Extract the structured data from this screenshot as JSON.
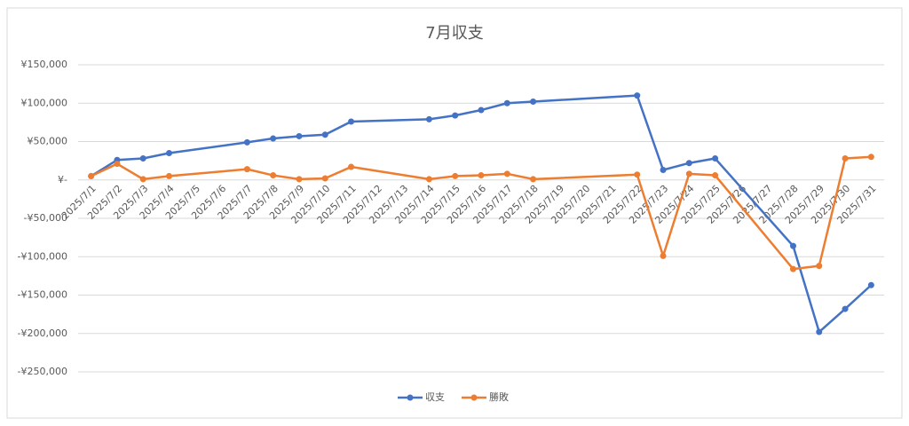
{
  "chart_data": {
    "type": "line",
    "title": "7月収支",
    "xticks": [
      "2025/7/1",
      "2025/7/2",
      "2025/7/3",
      "2025/7/4",
      "2025/7/5",
      "2025/7/6",
      "2025/7/7",
      "2025/7/8",
      "2025/7/9",
      "2025/7/10",
      "2025/7/11",
      "2025/7/12",
      "2025/7/13",
      "2025/7/14",
      "2025/7/15",
      "2025/7/16",
      "2025/7/17",
      "2025/7/18",
      "2025/7/19",
      "2025/7/20",
      "2025/7/21",
      "2025/7/22",
      "2025/7/23",
      "2025/7/24",
      "2025/7/25",
      "2025/7/26",
      "2025/7/27",
      "2025/7/28",
      "2025/7/29",
      "2025/7/30",
      "2025/7/31"
    ],
    "x": [
      "2025/7/1",
      "2025/7/2",
      "2025/7/3",
      "2025/7/4",
      "2025/7/7",
      "2025/7/8",
      "2025/7/9",
      "2025/7/10",
      "2025/7/11",
      "2025/7/14",
      "2025/7/15",
      "2025/7/16",
      "2025/7/17",
      "2025/7/18",
      "2025/7/22",
      "2025/7/23",
      "2025/7/24",
      "2025/7/25",
      "2025/7/28",
      "2025/7/29",
      "2025/7/30",
      "2025/7/31"
    ],
    "series": [
      {
        "name": "収支",
        "color": "#4472c4",
        "values": [
          5000,
          26000,
          28000,
          35000,
          49000,
          54000,
          57000,
          59000,
          76000,
          79000,
          84000,
          91000,
          100000,
          102000,
          110000,
          13000,
          22000,
          28000,
          -86000,
          -198000,
          -168000,
          -137000
        ]
      },
      {
        "name": "勝敗",
        "color": "#ed7d31",
        "values": [
          5000,
          21000,
          1000,
          5000,
          14000,
          6000,
          1000,
          2000,
          17000,
          1000,
          5000,
          6000,
          8000,
          1000,
          7000,
          -99000,
          8000,
          6000,
          -116000,
          -112000,
          28000,
          30000
        ]
      }
    ],
    "ylim": [
      -250000,
      150000
    ],
    "yticks": [
      {
        "value": -250000,
        "label": "-¥250,000"
      },
      {
        "value": -200000,
        "label": "-¥200,000"
      },
      {
        "value": -150000,
        "label": "-¥150,000"
      },
      {
        "value": -100000,
        "label": "-¥100,000"
      },
      {
        "value": -50000,
        "label": "-¥50,000"
      },
      {
        "value": 0,
        "label": "¥-"
      },
      {
        "value": 50000,
        "label": "¥50,000"
      },
      {
        "value": 100000,
        "label": "¥100,000"
      },
      {
        "value": 150000,
        "label": "¥150,000"
      }
    ],
    "grid": true,
    "legend": "bottom"
  }
}
